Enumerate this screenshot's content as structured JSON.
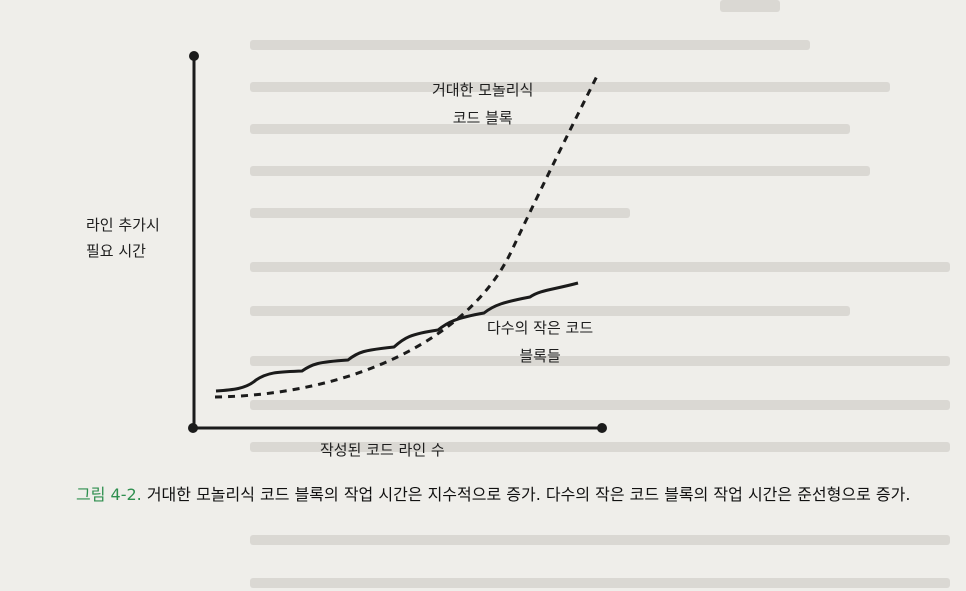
{
  "chart_data": {
    "type": "line",
    "ylabel": "라인 추가시\n필요 시간",
    "xlabel": "작성된 코드 라인 수",
    "series": [
      {
        "name": "거대한 모놀리식\n코드 블록",
        "style": "dashed",
        "trend": "exponential"
      },
      {
        "name": "다수의 작은 코드\n블록들",
        "style": "solid",
        "trend": "linear-stepped"
      }
    ]
  },
  "caption": {
    "figure_label": "그림 4-2.",
    "text": " 거대한 모놀리식 코드 블록의 작업 시간은 지수적으로 증가. 다수의 작은 코드 블록의 작업 시간은 준선형으로 증가."
  }
}
